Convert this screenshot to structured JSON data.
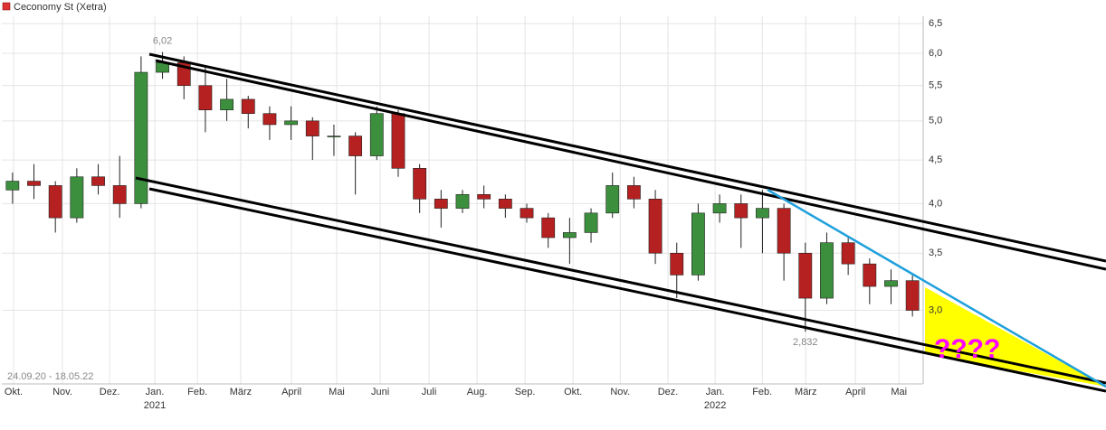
{
  "chart_data": {
    "type": "candlestick",
    "title": "Ceconomy St (Xetra)",
    "date_range": "24.09.20 - 18.05.22",
    "annotation": "????",
    "max_label": "6,02",
    "min_label": "2,832",
    "log_scale": true,
    "grid": true,
    "up_color": "#3c8f3c",
    "down_color": "#b52020",
    "ylim": [
      2.46,
      6.63
    ],
    "yticks": [
      {
        "value": 3.0,
        "label": "3,0"
      },
      {
        "value": 3.5,
        "label": "3,5"
      },
      {
        "value": 4.0,
        "label": "4,0"
      },
      {
        "value": 4.5,
        "label": "4,5"
      },
      {
        "value": 5.0,
        "label": "5,0"
      },
      {
        "value": 5.5,
        "label": "5,5"
      },
      {
        "value": 6.0,
        "label": "6,0"
      },
      {
        "value": 6.5,
        "label": "6,5"
      }
    ],
    "xlim": [
      0,
      43
    ],
    "xticks": [
      {
        "value": 0.55,
        "label": "Okt."
      },
      {
        "value": 2.83,
        "label": "Nov."
      },
      {
        "value": 5.03,
        "label": "Dez."
      },
      {
        "value": 7.14,
        "label": "Jan."
      },
      {
        "value": 9.13,
        "label": "Feb."
      },
      {
        "value": 11.15,
        "label": "März"
      },
      {
        "value": 13.52,
        "label": "April"
      },
      {
        "value": 15.63,
        "label": "Mai"
      },
      {
        "value": 17.66,
        "label": "Juni"
      },
      {
        "value": 19.94,
        "label": "Juli"
      },
      {
        "value": 22.18,
        "label": "Aug."
      },
      {
        "value": 24.42,
        "label": "Sep."
      },
      {
        "value": 26.66,
        "label": "Okt."
      },
      {
        "value": 28.86,
        "label": "Nov."
      },
      {
        "value": 31.09,
        "label": "Dez."
      },
      {
        "value": 33.29,
        "label": "Jan."
      },
      {
        "value": 35.49,
        "label": "Feb."
      },
      {
        "value": 37.52,
        "label": "März"
      },
      {
        "value": 39.84,
        "label": "April"
      },
      {
        "value": 41.87,
        "label": "Mai"
      }
    ],
    "year_ticks": [
      {
        "value": 7.14,
        "label": "2021"
      },
      {
        "value": 33.29,
        "label": "2022"
      }
    ],
    "open": [
      4.15,
      4.25,
      4.2,
      3.85,
      4.3,
      4.2,
      4.0,
      5.7,
      5.85,
      5.5,
      5.15,
      5.3,
      5.1,
      4.95,
      5.0,
      4.8,
      4.8,
      4.55,
      5.1,
      4.4,
      4.05,
      3.95,
      4.1,
      4.05,
      3.95,
      3.85,
      3.65,
      3.7,
      3.9,
      4.2,
      4.05,
      3.5,
      3.3,
      3.9,
      4.0,
      3.85,
      3.95,
      3.5,
      3.1,
      3.6,
      3.4,
      3.2,
      3.25
    ],
    "high": [
      4.35,
      4.45,
      4.25,
      4.4,
      4.45,
      4.55,
      5.95,
      6.02,
      5.95,
      5.8,
      5.6,
      5.35,
      5.2,
      5.2,
      5.05,
      4.95,
      4.85,
      5.2,
      5.15,
      4.45,
      4.15,
      4.15,
      4.2,
      4.1,
      4.0,
      3.9,
      3.85,
      3.95,
      4.35,
      4.3,
      4.15,
      3.6,
      4.0,
      4.1,
      4.1,
      4.15,
      4.0,
      3.6,
      3.7,
      3.65,
      3.45,
      3.35,
      3.3
    ],
    "low": [
      4.0,
      4.05,
      3.7,
      3.8,
      4.1,
      3.85,
      3.95,
      5.6,
      5.3,
      4.85,
      5.0,
      4.9,
      4.75,
      4.75,
      4.5,
      4.55,
      4.1,
      4.5,
      4.3,
      3.9,
      3.75,
      3.9,
      3.95,
      3.85,
      3.8,
      3.55,
      3.4,
      3.6,
      3.85,
      3.95,
      3.4,
      3.1,
      3.25,
      3.8,
      3.55,
      3.5,
      3.25,
      2.832,
      3.05,
      3.3,
      3.05,
      3.05,
      2.95
    ],
    "close": [
      4.25,
      4.2,
      3.85,
      4.3,
      4.2,
      4.0,
      5.7,
      5.85,
      5.5,
      5.15,
      5.3,
      5.1,
      4.95,
      5.0,
      4.8,
      4.8,
      4.55,
      5.1,
      4.4,
      4.05,
      3.95,
      4.1,
      4.05,
      3.95,
      3.85,
      3.65,
      3.7,
      3.9,
      4.2,
      4.05,
      3.5,
      3.3,
      3.9,
      4.0,
      3.85,
      3.95,
      3.5,
      3.1,
      3.6,
      3.4,
      3.2,
      3.25,
      3.0
    ]
  }
}
